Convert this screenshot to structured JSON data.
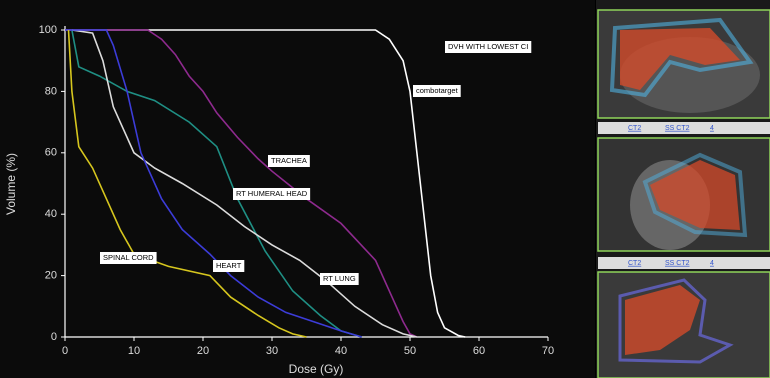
{
  "chart_data": {
    "type": "line",
    "annotation": "DVH WITH LOWEST CI",
    "x_label": "Dose (Gy)",
    "y_label": "Volume (%)",
    "xlim": [
      0,
      70
    ],
    "ylim": [
      0,
      100
    ],
    "xticks": [
      0,
      10,
      20,
      30,
      40,
      50,
      60,
      70
    ],
    "yticks": [
      0,
      20,
      40,
      60,
      80,
      100
    ],
    "series": [
      {
        "name": "combotarget",
        "color": "#ffffff",
        "x": [
          0,
          45,
          47,
          49,
          50,
          51,
          52,
          53,
          54,
          55,
          57,
          58
        ],
        "values": [
          100,
          100,
          97,
          90,
          80,
          60,
          40,
          20,
          8,
          3,
          0.5,
          0
        ]
      },
      {
        "name": "TRACHEA",
        "color": "#8e2a8e",
        "x": [
          0,
          12,
          14,
          16,
          18,
          20,
          22,
          25,
          28,
          30,
          35,
          40,
          45,
          47,
          49,
          50,
          51
        ],
        "values": [
          100,
          100,
          97,
          92,
          85,
          80,
          73,
          65,
          58,
          54,
          45,
          37,
          25,
          15,
          5,
          1,
          0
        ]
      },
      {
        "name": "RT HUMERAL HEAD",
        "color": "#1f8f84",
        "x": [
          1,
          2,
          5,
          9,
          13,
          18,
          22,
          25,
          29,
          33,
          37,
          40,
          43
        ],
        "values": [
          100,
          88,
          85,
          80,
          77,
          70,
          62,
          45,
          28,
          15,
          7,
          2,
          0
        ]
      },
      {
        "name": "RT LUNG",
        "color": "#dcdcdc",
        "x": [
          1,
          4,
          5.5,
          7,
          10,
          13,
          17,
          22,
          26,
          30,
          34,
          38,
          42,
          46,
          49,
          51
        ],
        "values": [
          100,
          99,
          90,
          75,
          60,
          55,
          50,
          43,
          36,
          30,
          25,
          18,
          10,
          4,
          1,
          0
        ]
      },
      {
        "name": "HEART",
        "color": "#3c3cd8",
        "x": [
          0,
          6,
          7,
          9,
          11,
          14,
          17,
          21,
          24,
          28,
          32,
          36,
          40,
          43
        ],
        "values": [
          100,
          100,
          95,
          80,
          60,
          45,
          35,
          27,
          20,
          13,
          8,
          5,
          2,
          0
        ]
      },
      {
        "name": "SPINAL CORD",
        "color": "#d6c61e",
        "x": [
          0.5,
          1,
          2,
          4,
          6,
          8,
          10,
          15,
          21,
          24,
          28,
          31,
          33,
          35
        ],
        "values": [
          100,
          80,
          62,
          55,
          45,
          35,
          27,
          23,
          20,
          13,
          7,
          3,
          1,
          0
        ]
      }
    ]
  },
  "viewer": {
    "toolbar_labels": [
      "CT2",
      "SS CT2",
      "4"
    ]
  }
}
